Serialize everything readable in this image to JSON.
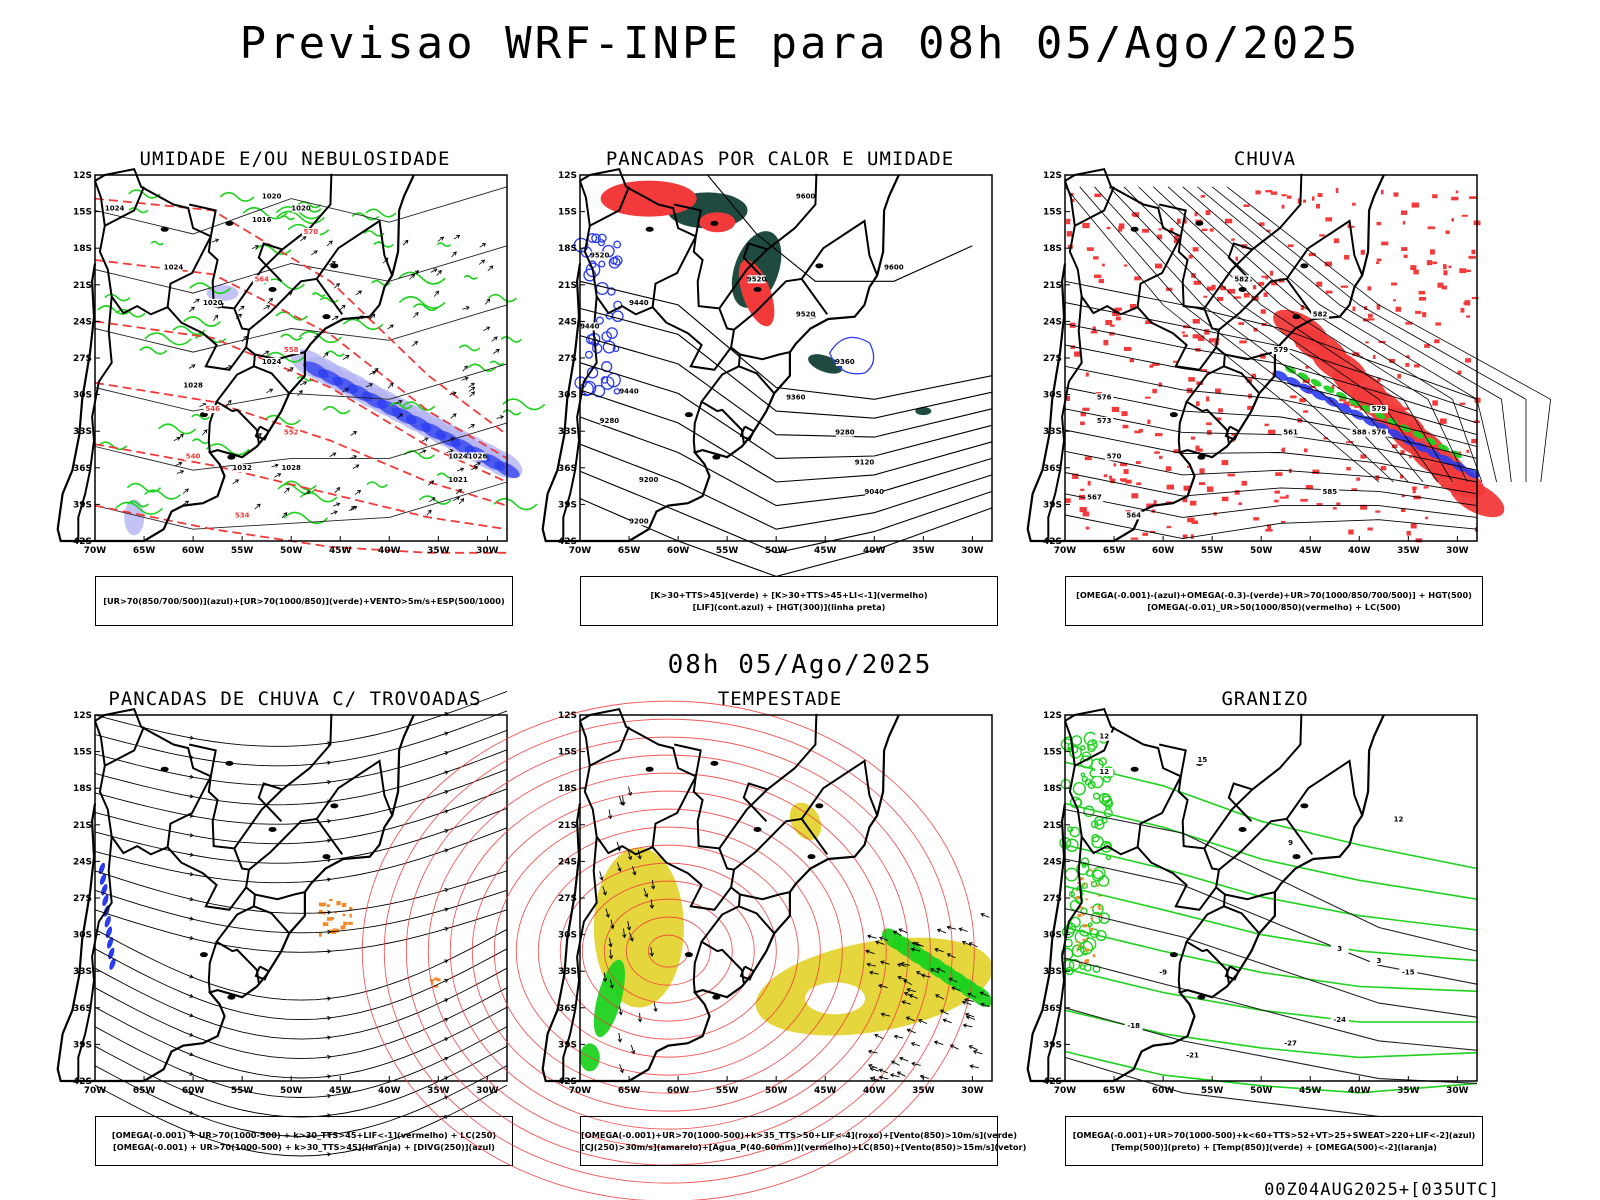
{
  "header": {
    "title": "Previsao WRF-INPE  para 08h 05/Ago/2025"
  },
  "mid_label": "08h 05/Ago/2025",
  "footer": {
    "stamp": "00Z04AUG2025+[035UTC]"
  },
  "axes": {
    "lat_labels": [
      "12S",
      "15S",
      "18S",
      "21S",
      "24S",
      "27S",
      "30S",
      "33S",
      "36S",
      "39S",
      "42S"
    ],
    "lon_labels": [
      "70W",
      "65W",
      "60W",
      "55W",
      "50W",
      "45W",
      "40W",
      "35W",
      "30W"
    ]
  },
  "colors": {
    "blue": "#2b3cf0",
    "green": "#1fd21f",
    "red": "#f23a3a",
    "darkgreen": "#1e4a40",
    "yellow": "#e3d431",
    "orange": "#f08a2a",
    "lavender": "#b4b4f4"
  },
  "panels": [
    {
      "id": "umidade",
      "title": "UMIDADE E/OU NEBULOSIDADE",
      "legend": [
        "[UR>70(850/700/500)](azul)+[UR>70(1000/850)](verde)+VENTO>5m/s+ESP(500/1000)"
      ],
      "contour_labels": [
        "1020",
        "1016",
        "1020",
        "1024",
        "1020",
        "1028",
        "1024",
        "1028",
        "1032",
        "1024",
        "1026",
        "1021",
        "1024",
        "570",
        "564",
        "558",
        "552",
        "546",
        "540",
        "534"
      ]
    },
    {
      "id": "pancadas-calor",
      "title": "PANCADAS POR CALOR E UMIDADE",
      "legend": [
        "[K>30+TTS>45](verde) + [K>30+TTS>45+LI<-1](vermelho)",
        "[LIF](cont.azul) + [HGT(300)](linha preta)"
      ],
      "contour_labels": [
        "9600",
        "9520",
        "9600",
        "9520",
        "9520",
        "9440",
        "9440",
        "9360",
        "9440",
        "9360",
        "9280",
        "9280",
        "9200",
        "9120",
        "9200",
        "9040"
      ]
    },
    {
      "id": "chuva",
      "title": "CHUVA",
      "legend": [
        "[OMEGA(-0.001)-(azul)+OMEGA(-0.3)-(verde)+UR>70(1000/850/700/500)] + HGT(500)",
        "[OMEGA(-0.01)_UR>50(1000/850)(vermelho) + LC(500)"
      ],
      "contour_labels": [
        "582",
        "582",
        "579",
        "576",
        "573",
        "570",
        "567",
        "564",
        "561",
        "585",
        "588",
        "579",
        "576"
      ]
    },
    {
      "id": "pancadas-trovoadas",
      "title": "PANCADAS DE CHUVA C/ TROVOADAS",
      "legend": [
        "[OMEGA(-0.001) + UR>70(1000-500) + k>30_TTS>45+LIF<-1](vermelho) + LC(250)",
        "[OMEGA(-0.001) + UR>70(1000-500) + k>30_TTS>45](laranja) + [DIVG(250)](azul)"
      ],
      "contour_labels": []
    },
    {
      "id": "tempestade",
      "title": "TEMPESTADE",
      "legend": [
        "[OMEGA(-0.001)+UR>70(1000-500)+k>35_TTS>50+LIF<-4](roxo)+[Vento(850)>10m/s](verde)",
        "[CJ(250)>30m/s](amarelo)+[Agua_P(40-60mm)](vermelho)+LC(850)+[Vento(850)>15m/s](vetor)"
      ],
      "contour_labels": []
    },
    {
      "id": "granizo",
      "title": "GRANIZO",
      "legend": [
        "[OMEGA(-0.001)+UR>70(1000-500)+k<60+TTS>52+VT>25+SWEAT>220+LIF<-2](azul)",
        "[Temp(500)](preto) + [Temp(850)](verde) + [OMEGA(500)<-2](laranja)"
      ],
      "contour_labels": [
        "12",
        "15",
        "12",
        "9",
        "12",
        "3",
        "3",
        "-15",
        "-9",
        "-18",
        "-24",
        "-21",
        "-27"
      ]
    }
  ]
}
